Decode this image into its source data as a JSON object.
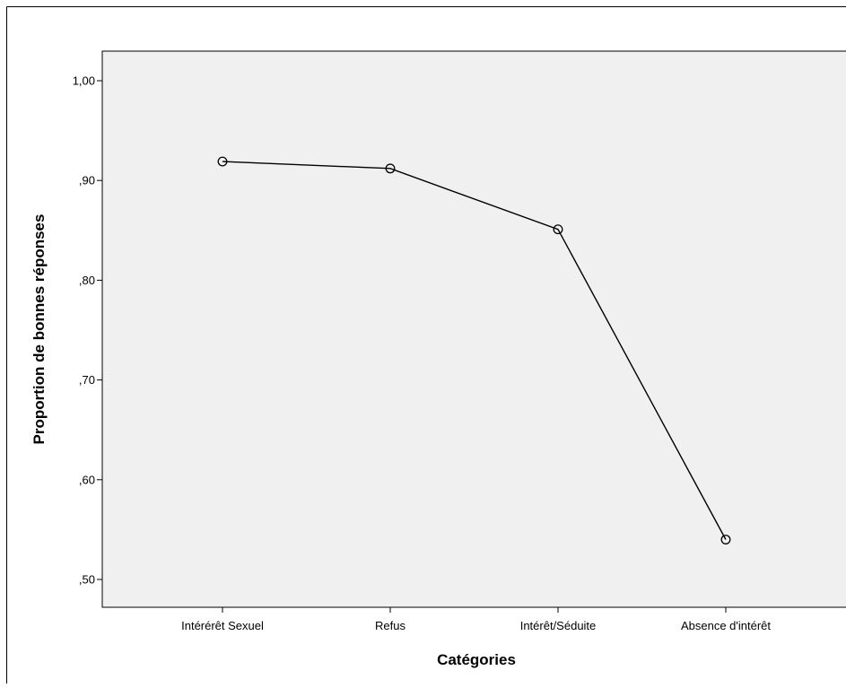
{
  "chart_data": {
    "type": "line",
    "title": "",
    "xlabel": "Catégories",
    "ylabel": "Proportion de bonnes réponses",
    "categories": [
      "Intérérêt Sexuel",
      "Refus",
      "Intérêt/Séduite",
      "Absence d'intérêt"
    ],
    "series": [
      {
        "values": [
          0.919,
          0.912,
          0.851,
          0.54
        ],
        "marker": "open-circle",
        "color": "#000000"
      }
    ],
    "ylim": [
      0.47,
      1.03
    ],
    "yticks": [
      0.5,
      0.6,
      0.7,
      0.8,
      0.9,
      1.0
    ],
    "ytick_labels": [
      ",50",
      ",60",
      ",70",
      ",80",
      ",90",
      "1,00"
    ],
    "grid": false,
    "legend": "none",
    "plot_background": "#f0f0f0",
    "page_background": "#ffffff"
  }
}
